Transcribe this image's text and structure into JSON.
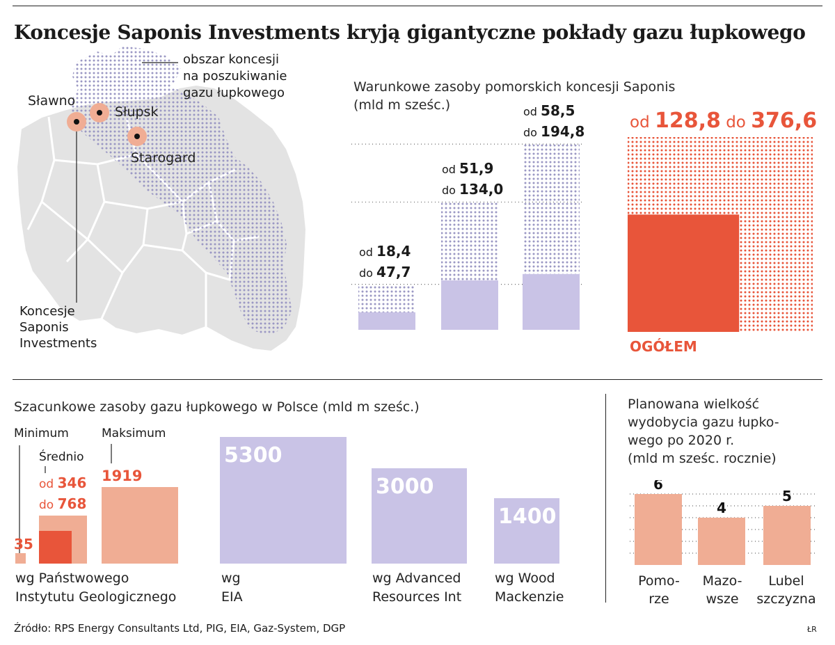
{
  "title": "Koncesje Saponis Investments kryją gigantyczne pokłady gazu łupkowego",
  "map": {
    "concession_label": [
      "obszar koncesji",
      "na poszukiwanie",
      "gazu łupkowego"
    ],
    "cities": [
      "Sławno",
      "Słupsk",
      "Starogard"
    ],
    "legend_label": [
      "Koncesje",
      "Saponis",
      "Investments"
    ]
  },
  "colors": {
    "lavender": "#c9c3e6",
    "salmon": "#f0ad94",
    "red": "#e8553a",
    "gray": "#e3e3e3",
    "dots": "#9b98c4"
  },
  "chart_data": [
    {
      "type": "bar",
      "title": "Warunkowe zasoby pomorskich koncesji Saponis",
      "unit": "(mld m sześc.)",
      "categories": [
        "Sławno",
        "Słupsk",
        "Starogard"
      ],
      "series": [
        {
          "name": "od",
          "values": [
            18.4,
            51.9,
            58.5
          ]
        },
        {
          "name": "do",
          "values": [
            47.7,
            134.0,
            194.8
          ]
        }
      ],
      "labels": [
        {
          "from_word": "od",
          "from": "18,4",
          "to_word": "do",
          "to": "47,7"
        },
        {
          "from_word": "od",
          "from": "51,9",
          "to_word": "do",
          "to": "134,0"
        },
        {
          "from_word": "od",
          "from": "58,5",
          "to_word": "do",
          "to": "194,8"
        }
      ],
      "ylim": [
        0,
        200
      ],
      "grid": true
    },
    {
      "type": "area",
      "label": "OGÓŁEM",
      "from_word": "od",
      "from_value": 128.8,
      "from": "128,8",
      "to_word": "do",
      "to_value": 376.6,
      "to": "376,6"
    },
    {
      "type": "bar",
      "title": "Szacunkowe zasoby gazu łupkowego w Polsce (mld m sześc.)",
      "sources": [
        {
          "name": "wg Państwowego Instytutu Geologicznego",
          "label_lines": [
            "wg Państwowego",
            "Instytutu Geologicznego"
          ],
          "minimum_label": "Minimum",
          "average_label": "Średnio",
          "maximum_label": "Maksimum",
          "minimum": 35,
          "minimum_text": "35",
          "average_from": 346,
          "average_from_word": "od",
          "average_from_text": "346",
          "average_to": 768,
          "average_to_word": "do",
          "average_to_text": "768",
          "maximum": 1919,
          "maximum_text": "1919"
        },
        {
          "name": "wg EIA",
          "label_lines": [
            "wg",
            "EIA"
          ],
          "value": 5300,
          "value_text": "5300"
        },
        {
          "name": "wg Advanced Resources Int",
          "label_lines": [
            "wg Advanced",
            "Resources Int"
          ],
          "value": 3000,
          "value_text": "3000"
        },
        {
          "name": "wg Wood Mackenzie",
          "label_lines": [
            "wg Wood",
            "Mackenzie"
          ],
          "value": 1400,
          "value_text": "1400"
        }
      ]
    },
    {
      "type": "bar",
      "title": "Planowana wielkość wydobycia gazu łupkowego po 2020 r. (mld m sześc. rocznie)",
      "title_lines": [
        "Planowana wielkość",
        "wydobycia gazu łupko-",
        "wego po 2020 r.",
        "(mld m sześc. rocznie)"
      ],
      "categories": [
        "Pomorze",
        "Mazowsze",
        "Lubelszczyzna"
      ],
      "category_lines": [
        [
          "Pomo-",
          "rze"
        ],
        [
          "Mazo-",
          "wsze"
        ],
        [
          "Lubel",
          "szczyzna"
        ]
      ],
      "values": [
        6,
        4,
        5
      ],
      "ylim": [
        0,
        6
      ],
      "grid": true
    }
  ],
  "footer": {
    "source": "Źródło: RPS Energy Consultants Ltd, PIG, EIA, Gaz-System, DGP",
    "initials": "ŁR"
  }
}
